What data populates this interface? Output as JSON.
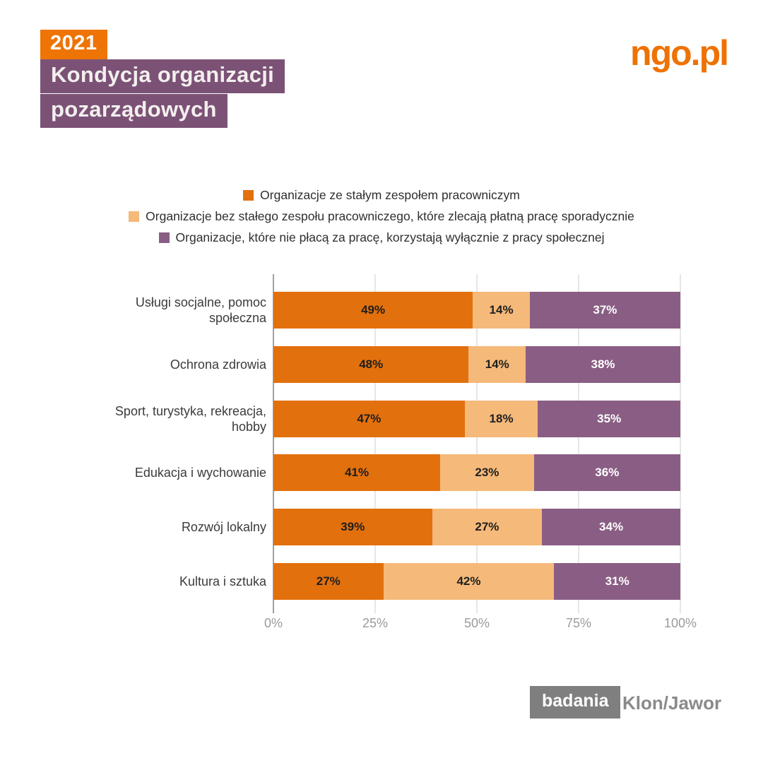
{
  "header": {
    "year": "2021",
    "title_line1": "Kondycja organizacji",
    "title_line2": "pozarządowych",
    "logo": "ngo.pl"
  },
  "footer": {
    "badge": "badania",
    "brand": "Klon/Jawor"
  },
  "colors": {
    "series1": "#e2700d",
    "series2": "#f5b97a",
    "series3": "#8a5e84",
    "header_orange": "#ed7405",
    "header_purple": "#7b5276",
    "logo_orange": "#ee7203",
    "footer_gray": "#7f7f7f",
    "axis_line": "#424242",
    "gridline": "#cccccc",
    "tick_label": "#9b9b9b"
  },
  "chart_data": {
    "type": "bar",
    "orientation": "horizontal",
    "stacked": true,
    "grid": "vertical",
    "legend_position": "top-center",
    "value_suffix": "%",
    "xlim": [
      0,
      100
    ],
    "x_ticks": [
      "0%",
      "25%",
      "50%",
      "75%",
      "100%"
    ],
    "x_tick_values": [
      0,
      25,
      50,
      75,
      100
    ],
    "categories": [
      "Usługi socjalne, pomoc społeczna",
      "Ochrona zdrowia",
      "Sport, turystyka, rekreacja, hobby",
      "Edukacja i wychowanie",
      "Rozwój lokalny",
      "Kultura i sztuka"
    ],
    "series": [
      {
        "name": "Organizacje ze stałym zespołem pracowniczym",
        "color": "#e2700d",
        "label_color": "#1f1f1f",
        "values": [
          49,
          48,
          47,
          41,
          39,
          27
        ]
      },
      {
        "name": "Organizacje bez stałego zespołu pracowniczego, które zlecają płatną pracę sporadycznie",
        "color": "#f5b97a",
        "label_color": "#1f1f1f",
        "values": [
          14,
          14,
          18,
          23,
          27,
          42
        ]
      },
      {
        "name": "Organizacje, które nie płacą za pracę, korzystają wyłącznie z pracy społecznej",
        "color": "#8a5e84",
        "label_color": "#ffffff",
        "values": [
          37,
          38,
          35,
          36,
          34,
          31
        ]
      }
    ]
  }
}
